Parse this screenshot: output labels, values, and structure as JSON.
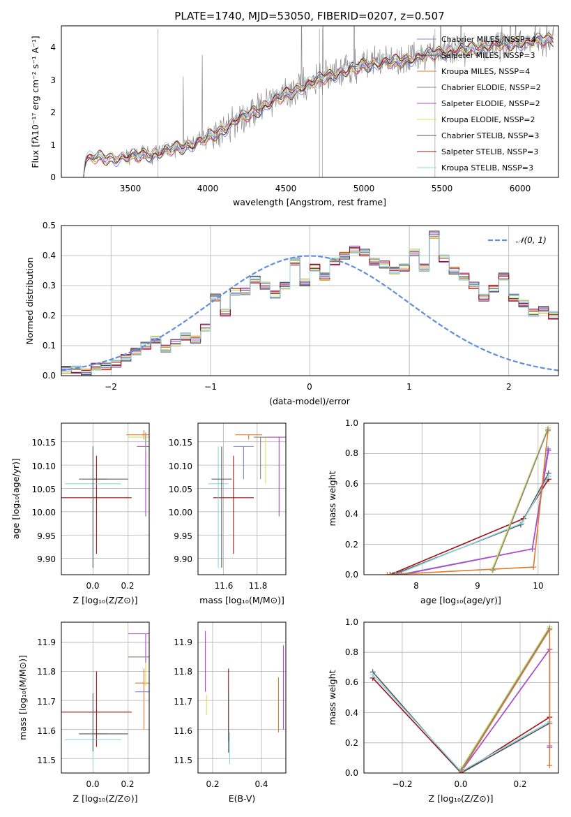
{
  "colors": {
    "chabrier_miles": "#7b86de",
    "salpeter_miles": "#4a4a4a",
    "kroupa_miles": "#e07a2c",
    "chabrier_elodie": "#888888",
    "salpeter_elodie": "#b148c9",
    "kroupa_elodie": "#d8e05a",
    "chabrier_stelib": "#555555",
    "salpeter_stelib": "#a01010",
    "kroupa_stelib": "#8ed8e4",
    "normal": "#5f8fdc"
  },
  "chart_data": [
    {
      "id": "spectrum",
      "type": "line",
      "title": "PLATE=1740, MJD=53050, FIBERID=0207, z=0.507",
      "xlabel": "wavelength [Angstrom, rest frame]",
      "ylabel": "Flux [fλ10⁻¹⁷ erg cm⁻² s⁻¹ A⁻¹]",
      "xlim": [
        3090,
        6230
      ],
      "ylim": [
        0,
        4.7
      ],
      "xticks": [
        "3500",
        "4000",
        "4500",
        "5000",
        "5500",
        "6000"
      ],
      "yticks": [
        "0",
        "1",
        "2",
        "3",
        "4"
      ],
      "grid": false,
      "legend_position": "top-right",
      "legend": [
        "Chabrier MILES, NSSP=4",
        "Salpeter MILES, NSSP=3",
        "Kroupa MILES, NSSP=4",
        "Chabrier ELODIE, NSSP=2",
        "Salpeter ELODIE, NSSP=2",
        "Kroupa ELODIE, NSSP=2",
        "Chabrier STELIB, NSSP=3",
        "Salpeter STELIB, NSSP=3",
        "Kroupa STELIB, NSSP=3"
      ],
      "continuum": {
        "x": [
          3230,
          3240,
          3300,
          3400,
          3500,
          3600,
          3700,
          3800,
          3900,
          4000,
          4100,
          4200,
          4300,
          4400,
          4500,
          4600,
          4700,
          4800,
          4900,
          5000,
          5100,
          5200,
          5300,
          5400,
          5500,
          5600,
          5700,
          5800,
          5900,
          6000,
          6100,
          6200
        ],
        "y": [
          0.1,
          0.55,
          0.62,
          0.6,
          0.62,
          0.7,
          0.75,
          0.9,
          1.0,
          1.2,
          1.45,
          1.8,
          2.0,
          2.3,
          2.55,
          2.8,
          3.0,
          3.2,
          3.3,
          3.5,
          3.55,
          3.6,
          3.7,
          3.8,
          3.9,
          3.95,
          4.0,
          4.1,
          4.15,
          4.2,
          4.25,
          4.3
        ]
      }
    },
    {
      "id": "residuals",
      "type": "line",
      "xlabel": "(data-model)/error",
      "ylabel": "Normed distribution",
      "xlim": [
        -2.5,
        2.5
      ],
      "ylim": [
        0,
        0.5
      ],
      "xticks": [
        "−2",
        "−1",
        "0",
        "1",
        "2"
      ],
      "yticks": [
        "0.0",
        "0.1",
        "0.2",
        "0.3",
        "0.4",
        "0.5"
      ],
      "grid": true,
      "legend_position": "top-right",
      "normal_label": "𝒩(0, 1)",
      "hist_bin_width": 0.1,
      "hist_x_start": -2.5,
      "hist_values": [
        0.02,
        0.02,
        0.01,
        0.03,
        0.03,
        0.04,
        0.06,
        0.08,
        0.1,
        0.12,
        0.09,
        0.11,
        0.13,
        0.12,
        0.16,
        0.26,
        0.21,
        0.28,
        0.28,
        0.32,
        0.3,
        0.27,
        0.3,
        0.38,
        0.31,
        0.36,
        0.33,
        0.38,
        0.4,
        0.42,
        0.41,
        0.38,
        0.37,
        0.35,
        0.36,
        0.41,
        0.36,
        0.47,
        0.39,
        0.35,
        0.33,
        0.3,
        0.26,
        0.29,
        0.33,
        0.26,
        0.24,
        0.21,
        0.22,
        0.2,
        0.17,
        0.19,
        0.21,
        0.18,
        0.14,
        0.15,
        0.12,
        0.14,
        0.13,
        0.1,
        0.12,
        0.08,
        0.1,
        0.09,
        0.06,
        0.05,
        0.04,
        0.04,
        0.04,
        0.03,
        0.03,
        0.02,
        0.02,
        0.02,
        0.02
      ]
    },
    {
      "id": "age_vs_Z",
      "type": "scatter",
      "xlabel": "Z [log₁₀(Z/Z⊙)]",
      "ylabel": "age  [log₁₀(age/yr)]",
      "xlim": [
        -0.18,
        0.32
      ],
      "ylim": [
        9.865,
        10.19
      ],
      "xticks": [
        "0.0",
        "0.2"
      ],
      "yticks": [
        "9.90",
        "9.95",
        "10.00",
        "10.05",
        "10.10",
        "10.15"
      ],
      "grid": true,
      "points": [
        {
          "x": 0.02,
          "y": 10.03,
          "xerr": 0.2,
          "yerr": [
            0.12,
            0.09
          ],
          "c": "salpeter_stelib"
        },
        {
          "x": 0.0,
          "y": 10.06,
          "xerr": 0.16,
          "yerr": [
            0.18,
            0.08
          ],
          "c": "kroupa_stelib"
        },
        {
          "x": 0.0,
          "y": 10.07,
          "xerr": 0.08,
          "yerr": [
            0.19,
            0.07
          ],
          "c": "chabrier_stelib"
        },
        {
          "x": 0.1,
          "y": 10.07,
          "xerr": 0.1,
          "yerr": [
            0.0,
            0.0
          ],
          "c": "chabrier_stelib"
        },
        {
          "x": 0.29,
          "y": 10.165,
          "xerr": 0.1,
          "yerr": [
            0.01,
            0.01
          ],
          "c": "kroupa_miles"
        },
        {
          "x": 0.3,
          "y": 10.16,
          "xerr": 0.1,
          "yerr": [
            0.02,
            0.01
          ],
          "c": "kroupa_elodie"
        },
        {
          "x": 0.3,
          "y": 10.14,
          "xerr": 0.05,
          "yerr": [
            0.15,
            0.02
          ],
          "c": "salpeter_elodie"
        },
        {
          "x": 0.3,
          "y": 10.16,
          "xerr": 0.0,
          "yerr": [
            0.03,
            0.01
          ],
          "c": "chabrier_elodie"
        }
      ]
    },
    {
      "id": "age_vs_mass",
      "type": "scatter",
      "xlabel": "mass [log₁₀(M/M⊙)]",
      "ylabel": "",
      "xlim": [
        11.45,
        11.97
      ],
      "ylim": [
        9.865,
        10.19
      ],
      "xticks": [
        "11.6",
        "11.8"
      ],
      "yticks": [
        "9.90",
        "9.95",
        "10.00",
        "10.05",
        "10.10",
        "10.15"
      ],
      "grid": true,
      "points": [
        {
          "x": 11.66,
          "y": 10.03,
          "xerr": 0.12,
          "yerr": [
            0.12,
            0.09
          ],
          "c": "salpeter_stelib"
        },
        {
          "x": 11.57,
          "y": 10.06,
          "xerr": 0.06,
          "yerr": [
            0.18,
            0.08
          ],
          "c": "kroupa_stelib"
        },
        {
          "x": 11.59,
          "y": 10.07,
          "xerr": 0.06,
          "yerr": [
            0.19,
            0.07
          ],
          "c": "chabrier_stelib"
        },
        {
          "x": 11.72,
          "y": 10.14,
          "xerr": 0.06,
          "yerr": [
            0.07,
            0.0
          ],
          "c": "chabrier_miles"
        },
        {
          "x": 11.75,
          "y": 10.165,
          "xerr": 0.08,
          "yerr": [
            0.01,
            0.0
          ],
          "c": "kroupa_miles"
        },
        {
          "x": 11.85,
          "y": 10.16,
          "xerr": 0.06,
          "yerr": [
            0.1,
            0.0
          ],
          "c": "kroupa_elodie"
        },
        {
          "x": 11.93,
          "y": 10.16,
          "xerr": 0.1,
          "yerr": [
            0.17,
            0.0
          ],
          "c": "salpeter_elodie"
        },
        {
          "x": 11.82,
          "y": 10.16,
          "xerr": 0.04,
          "yerr": [
            0.09,
            0.0
          ],
          "c": "chabrier_elodie"
        }
      ]
    },
    {
      "id": "weight_vs_age",
      "type": "line",
      "xlabel": "age  [log₁₀(age/yr)]",
      "ylabel": "mass weight",
      "xlim": [
        7.0,
        10.35
      ],
      "ylim": [
        0,
        1.0
      ],
      "xticks": [
        "8",
        "9",
        "10"
      ],
      "yticks": [
        "0.0",
        "0.2",
        "0.4",
        "0.6",
        "0.8",
        "1.0"
      ],
      "grid": true,
      "series": [
        {
          "c": "salpeter_stelib",
          "x": [
            7.45,
            9.75,
            10.18
          ],
          "y": [
            0.0,
            0.37,
            0.63
          ]
        },
        {
          "c": "chabrier_stelib",
          "x": [
            7.5,
            9.7,
            10.18
          ],
          "y": [
            0.0,
            0.33,
            0.67
          ]
        },
        {
          "c": "kroupa_stelib",
          "x": [
            7.55,
            9.72,
            10.18
          ],
          "y": [
            0.0,
            0.34,
            0.65
          ]
        },
        {
          "c": "chabrier_miles",
          "x": [
            7.6,
            9.9,
            10.17
          ],
          "y": [
            0.0,
            0.17,
            0.83
          ]
        },
        {
          "c": "salpeter_elodie",
          "x": [
            7.65,
            9.9,
            10.18
          ],
          "y": [
            0.0,
            0.17,
            0.82
          ]
        },
        {
          "c": "kroupa_miles",
          "x": [
            7.4,
            9.92,
            10.17
          ],
          "y": [
            0.0,
            0.05,
            0.95
          ]
        },
        {
          "c": "kroupa_elodie",
          "x": [
            9.2,
            10.17
          ],
          "y": [
            0.03,
            0.97
          ]
        },
        {
          "c": "chabrier_elodie",
          "x": [
            9.22,
            10.17
          ],
          "y": [
            0.03,
            0.96
          ]
        }
      ]
    },
    {
      "id": "mass_vs_Z",
      "type": "scatter",
      "xlabel": "Z [log₁₀(Z/Z⊙)]",
      "ylabel": "mass [log₁₀(M/M⊙)]",
      "xlim": [
        -0.18,
        0.32
      ],
      "ylim": [
        11.45,
        11.97
      ],
      "xticks": [
        "0.0",
        "0.2"
      ],
      "yticks": [
        "11.5",
        "11.6",
        "11.7",
        "11.8",
        "11.9"
      ],
      "grid": true,
      "points": [
        {
          "x": 0.02,
          "y": 11.66,
          "xerr": 0.2,
          "yerr": [
            0.12,
            0.14
          ],
          "c": "salpeter_stelib"
        },
        {
          "x": 0.0,
          "y": 11.565,
          "xerr": 0.16,
          "yerr": [
            0.09,
            0.06
          ],
          "c": "kroupa_stelib"
        },
        {
          "x": 0.0,
          "y": 11.585,
          "xerr": 0.08,
          "yerr": [
            0.06,
            0.14
          ],
          "c": "chabrier_stelib"
        },
        {
          "x": 0.1,
          "y": 11.585,
          "xerr": 0.1,
          "yerr": [
            0.0,
            0.0
          ],
          "c": "chabrier_stelib"
        },
        {
          "x": 0.29,
          "y": 11.76,
          "xerr": 0.05,
          "yerr": [
            0.16,
            0.05
          ],
          "c": "kroupa_miles"
        },
        {
          "x": 0.3,
          "y": 11.85,
          "xerr": 0.1,
          "yerr": [
            0.1,
            0.0
          ],
          "c": "kroupa_elodie"
        },
        {
          "x": 0.3,
          "y": 11.93,
          "xerr": 0.1,
          "yerr": [
            0.1,
            0.0
          ],
          "c": "salpeter_elodie"
        },
        {
          "x": 0.3,
          "y": 11.85,
          "xerr": 0.1,
          "yerr": [
            0.0,
            0.0
          ],
          "c": "chabrier_elodie"
        },
        {
          "x": 0.29,
          "y": 11.73,
          "xerr": 0.05,
          "yerr": [
            0.0,
            0.0
          ],
          "c": "chabrier_miles"
        }
      ]
    },
    {
      "id": "mass_vs_ebv",
      "type": "scatter",
      "xlabel": "E(B-V)",
      "ylabel": "",
      "xlim": [
        0.14,
        0.5
      ],
      "ylim": [
        11.45,
        11.97
      ],
      "xticks": [
        "0.2",
        "0.4"
      ],
      "yticks": [
        "11.5",
        "11.6",
        "11.7",
        "11.8",
        "11.9"
      ],
      "grid": true,
      "points": [
        {
          "x": 0.17,
          "y": 11.85,
          "xerr": 0.0,
          "yerr": [
            0.12,
            0.09
          ],
          "c": "salpeter_elodie"
        },
        {
          "x": 0.175,
          "y": 11.72,
          "xerr": 0.0,
          "yerr": [
            0.07,
            0.0
          ],
          "c": "kroupa_elodie"
        },
        {
          "x": 0.265,
          "y": 11.66,
          "xerr": 0.0,
          "yerr": [
            0.1,
            0.15
          ],
          "c": "salpeter_stelib"
        },
        {
          "x": 0.265,
          "y": 11.6,
          "xerr": 0.0,
          "yerr": [
            0.08,
            0.13
          ],
          "c": "chabrier_stelib"
        },
        {
          "x": 0.27,
          "y": 11.55,
          "xerr": 0.0,
          "yerr": [
            0.07,
            0.04
          ],
          "c": "kroupa_stelib"
        },
        {
          "x": 0.47,
          "y": 11.68,
          "xerr": 0.0,
          "yerr": [
            0.09,
            0.1
          ],
          "c": "kroupa_miles"
        },
        {
          "x": 0.49,
          "y": 11.75,
          "xerr": 0.0,
          "yerr": [
            0.15,
            0.14
          ],
          "c": "salpeter_elodie"
        }
      ]
    },
    {
      "id": "weight_vs_Z",
      "type": "line",
      "xlabel": "Z [log₁₀(Z/Z⊙)]",
      "ylabel": "mass weight",
      "xlim": [
        -0.33,
        0.33
      ],
      "ylim": [
        0,
        1.0
      ],
      "xticks": [
        "−0.2",
        "0.0",
        "0.2"
      ],
      "yticks": [
        "0.0",
        "0.2",
        "0.4",
        "0.6",
        "0.8",
        "1.0"
      ],
      "grid": true,
      "series": [
        {
          "c": "salpeter_stelib",
          "x": [
            -0.3,
            0.0,
            0.3
          ],
          "y": [
            0.63,
            0.0,
            0.37
          ]
        },
        {
          "c": "chabrier_stelib",
          "x": [
            -0.3,
            0.0,
            0.3
          ],
          "y": [
            0.67,
            0.0,
            0.33
          ]
        },
        {
          "c": "kroupa_stelib",
          "x": [
            -0.3,
            0.0,
            0.3
          ],
          "y": [
            0.65,
            0.01,
            0.34
          ]
        },
        {
          "c": "chabrier_miles",
          "x": [
            0.0,
            0.3,
            0.3
          ],
          "y": [
            0.01,
            0.82,
            0.17
          ]
        },
        {
          "c": "salpeter_elodie",
          "x": [
            0.0,
            0.3,
            0.3
          ],
          "y": [
            0.01,
            0.82,
            0.18
          ]
        },
        {
          "c": "kroupa_miles",
          "x": [
            0.0,
            0.3,
            0.3
          ],
          "y": [
            0.01,
            0.95,
            0.05
          ]
        },
        {
          "c": "kroupa_elodie",
          "x": [
            0.0,
            0.3
          ],
          "y": [
            0.03,
            0.97
          ]
        },
        {
          "c": "chabrier_elodie",
          "x": [
            0.0,
            0.3
          ],
          "y": [
            0.02,
            0.96
          ]
        }
      ]
    }
  ]
}
